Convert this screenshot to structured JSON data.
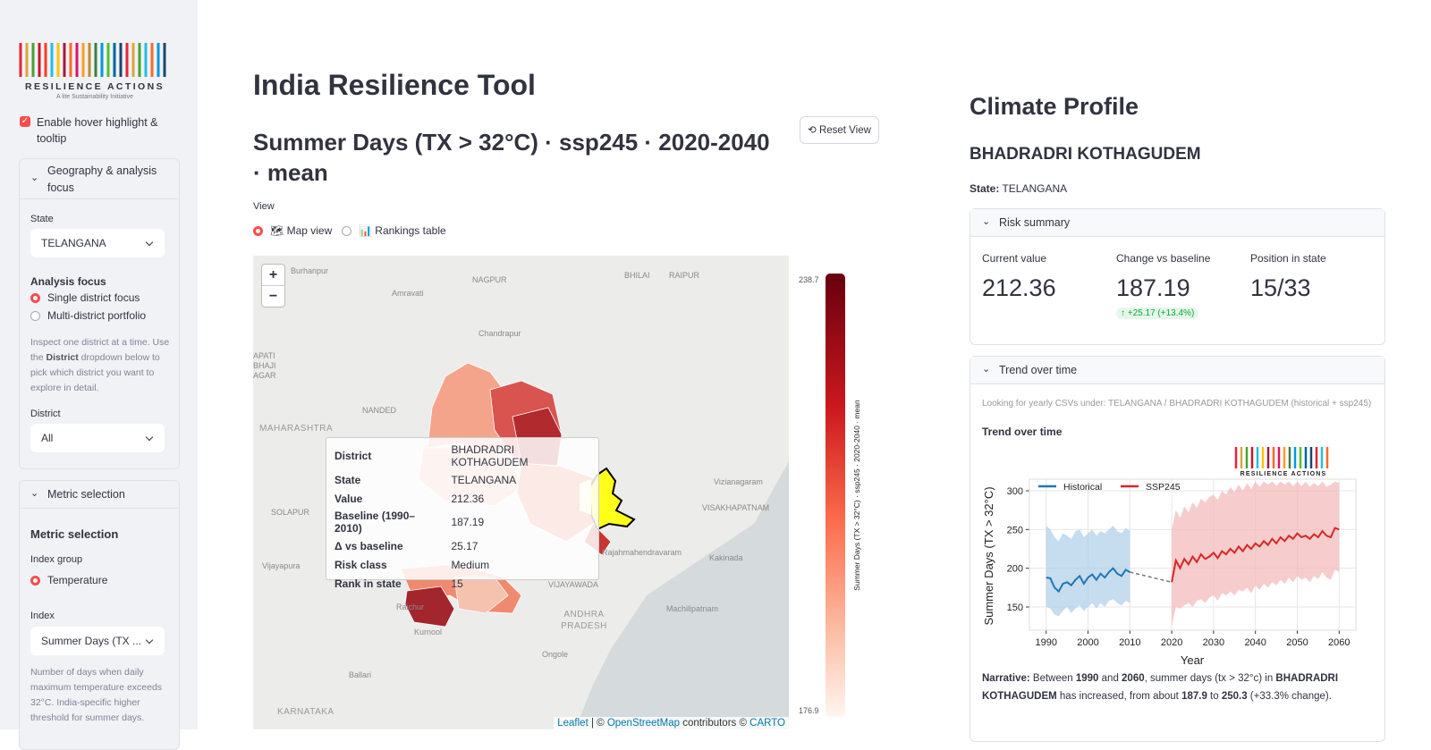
{
  "sidebar": {
    "logo": {
      "name": "RESILIENCE ACTIONS",
      "tagline": "A lite Sustainability Initiative"
    },
    "hover_toggle": "Enable hover highlight & tooltip",
    "geography": {
      "header": "Geography & analysis focus",
      "state_label": "State",
      "state_value": "TELANGANA",
      "focus_label": "Analysis focus",
      "focus_options": [
        "Single district focus",
        "Multi-district portfolio"
      ],
      "focus_help": [
        "Inspect one district at a time. Use the ",
        "District",
        " dropdown below to pick which district you want to explore in detail."
      ],
      "district_label": "District",
      "district_value": "All"
    },
    "metric": {
      "header": "Metric selection",
      "title": "Metric selection",
      "group_label": "Index group",
      "group_option": "Temperature",
      "index_label": "Index",
      "index_value": "Summer Days (TX ...",
      "index_help": "Number of days when daily maximum temperature exceeds 32°C. India-specific higher threshold for summer days."
    }
  },
  "main": {
    "title": "India Resilience Tool",
    "map_title": "Summer Days (TX > 32°C) · ssp245 · 2020-2040 · mean",
    "reset": "Reset View",
    "view_label": "View",
    "view_options": [
      "🗺 Map view",
      "📊 Rankings table"
    ],
    "map": {
      "zoom": [
        "+",
        "−"
      ],
      "places": [
        "Burhanpur",
        "NAGPUR",
        "BHILAI",
        "RAIPUR",
        "Amravati",
        "Chandrapur",
        "APATI",
        "BHAJI",
        "AGAR",
        "NANDED",
        "MAHARASHTRA",
        "SOLAPUR",
        "Vizianagaram",
        "VISAKHAPATNAM",
        "Rajahmahendravaram",
        "Kakinada",
        "Vijayapura",
        "VIJAYAWADA",
        "ANDHRA PRADESH",
        "Machilipatnam",
        "Raichur",
        "Kurnool",
        "Ongole",
        "Ballari",
        "KARNATAKA"
      ],
      "tooltip": [
        [
          "District",
          "BHADRADRI KOTHAGUDEM"
        ],
        [
          "State",
          "TELANGANA"
        ],
        [
          "Value",
          "212.36"
        ],
        [
          "Baseline (1990–2010)",
          "187.19"
        ],
        [
          "Δ vs baseline",
          "25.17"
        ],
        [
          "Risk class",
          "Medium"
        ],
        [
          "Rank in state",
          "15"
        ]
      ],
      "colorbar": {
        "max": "238.7",
        "min": "176.9",
        "label": "Summer Days (TX > 32°C) · ssp245 · 2020-2040 · mean"
      },
      "attribution": [
        "Leaflet",
        " | © ",
        "OpenStreetMap",
        " contributors © ",
        "CARTO"
      ]
    }
  },
  "profile": {
    "title": "Climate Profile",
    "district": "BHADRADRI KOTHAGUDEM",
    "state_label": "State:",
    "state_value": "TELANGANA",
    "risk": {
      "header": "Risk summary",
      "metrics": [
        {
          "label": "Current value",
          "value": "212.36"
        },
        {
          "label": "Change vs baseline",
          "value": "187.19",
          "delta": "↑ +25.17 (+13.4%)"
        },
        {
          "label": "Position in state",
          "value": "15/33"
        }
      ]
    },
    "trend": {
      "header": "Trend over time",
      "info": "Looking for yearly CSVs under: TELANGANA / BHADRADRI KOTHAGUDEM (historical + ssp245)",
      "subtitle": "Trend over time",
      "chart": {
        "type": "line",
        "xlabel": "Year",
        "ylabel": "Summer Days (TX > 32°C)",
        "grid": true,
        "xlim": [
          1986,
          2064
        ],
        "xticks": [
          1990,
          2000,
          2010,
          2020,
          2030,
          2040,
          2050,
          2060
        ],
        "ylim": [
          120,
          315
        ],
        "yticks": [
          150,
          200,
          250,
          300
        ],
        "x": [
          1990,
          1991,
          1992,
          1993,
          1994,
          1995,
          1996,
          1997,
          1998,
          1999,
          2000,
          2001,
          2002,
          2003,
          2004,
          2005,
          2006,
          2007,
          2008,
          2009,
          2010,
          2011,
          2012,
          2013,
          2014,
          2015,
          2016,
          2017,
          2018,
          2019,
          2020,
          2021,
          2022,
          2023,
          2024,
          2025,
          2026,
          2027,
          2028,
          2029,
          2030,
          2031,
          2032,
          2033,
          2034,
          2035,
          2036,
          2037,
          2038,
          2039,
          2040,
          2041,
          2042,
          2043,
          2044,
          2045,
          2046,
          2047,
          2048,
          2049,
          2050,
          2051,
          2052,
          2053,
          2054,
          2055,
          2056,
          2057,
          2058,
          2059,
          2060
        ],
        "series": [
          {
            "name": "Historical",
            "color": "#1f77b4",
            "band_color": "#aecde8",
            "values": [
              188,
              187,
              175,
              170,
              180,
              182,
              178,
              185,
              190,
              180,
              188,
              192,
              185,
              193,
              188,
              195,
              200,
              193,
              190,
              198,
              195,
              null,
              null,
              null,
              null,
              null,
              null,
              null,
              null,
              null,
              null,
              null,
              null,
              null,
              null,
              null,
              null,
              null,
              null,
              null,
              null,
              null,
              null,
              null,
              null,
              null,
              null,
              null,
              null,
              null,
              null,
              null,
              null,
              null,
              null,
              null,
              null,
              null,
              null,
              null,
              null,
              null,
              null,
              null,
              null,
              null,
              null,
              null,
              null,
              null,
              null
            ],
            "lower": [
              150,
              148,
              140,
              138,
              145,
              150,
              142,
              148,
              152,
              145,
              150,
              155,
              148,
              155,
              150,
              158,
              160,
              155,
              152,
              158,
              155,
              null,
              null,
              null,
              null,
              null,
              null,
              null,
              null,
              null,
              null,
              null,
              null,
              null,
              null,
              null,
              null,
              null,
              null,
              null,
              null,
              null,
              null,
              null,
              null,
              null,
              null,
              null,
              null,
              null,
              null,
              null,
              null,
              null,
              null,
              null,
              null,
              null,
              null,
              null,
              null,
              null,
              null,
              null,
              null,
              null,
              null,
              null,
              null,
              null,
              null
            ],
            "upper": [
              255,
              250,
              240,
              235,
              245,
              242,
              238,
              248,
              250,
              240,
              245,
              250,
              242,
              248,
              245,
              250,
              255,
              248,
              245,
              252,
              248,
              null,
              null,
              null,
              null,
              null,
              null,
              null,
              null,
              null,
              null,
              null,
              null,
              null,
              null,
              null,
              null,
              null,
              null,
              null,
              null,
              null,
              null,
              null,
              null,
              null,
              null,
              null,
              null,
              null,
              null,
              null,
              null,
              null,
              null,
              null,
              null,
              null,
              null,
              null,
              null,
              null,
              null,
              null,
              null,
              null,
              null,
              null,
              null,
              null,
              null
            ]
          },
          {
            "name": "SSP245",
            "color": "#d62728",
            "band_color": "#f4b6b8",
            "values": [
              null,
              null,
              null,
              null,
              null,
              null,
              null,
              null,
              null,
              null,
              null,
              null,
              null,
              null,
              null,
              null,
              null,
              null,
              null,
              null,
              null,
              null,
              null,
              null,
              null,
              null,
              null,
              null,
              null,
              null,
              182,
              210,
              200,
              212,
              205,
              215,
              208,
              218,
              212,
              215,
              220,
              213,
              222,
              218,
              225,
              220,
              228,
              222,
              230,
              225,
              232,
              228,
              235,
              230,
              238,
              232,
              240,
              235,
              242,
              238,
              245,
              240,
              242,
              238,
              244,
              240,
              248,
              242,
              240,
              252,
              250
            ],
            "lower": [
              null,
              null,
              null,
              null,
              null,
              null,
              null,
              null,
              null,
              null,
              null,
              null,
              null,
              null,
              null,
              null,
              null,
              null,
              null,
              null,
              null,
              null,
              null,
              null,
              null,
              null,
              null,
              null,
              null,
              null,
              125,
              150,
              148,
              152,
              155,
              150,
              158,
              160,
              155,
              162,
              165,
              158,
              168,
              165,
              170,
              165,
              172,
              170,
              175,
              168,
              178,
              172,
              180,
              175,
              182,
              178,
              185,
              180,
              188,
              182,
              190,
              185,
              188,
              182,
              190,
              186,
              195,
              188,
              185,
              198,
              195
            ],
            "upper": [
              null,
              null,
              null,
              null,
              null,
              null,
              null,
              null,
              null,
              null,
              null,
              null,
              null,
              null,
              null,
              null,
              null,
              null,
              null,
              null,
              null,
              null,
              null,
              null,
              null,
              null,
              null,
              null,
              null,
              null,
              250,
              275,
              265,
              280,
              272,
              285,
              278,
              290,
              285,
              292,
              295,
              288,
              300,
              295,
              305,
              298,
              308,
              300,
              310,
              302,
              312,
              305,
              312,
              308,
              312,
              306,
              312,
              308,
              312,
              306,
              312,
              306,
              312,
              305,
              310,
              306,
              312,
              305,
              308,
              312,
              310
            ]
          }
        ]
      },
      "narrative": [
        "Narrative:",
        " Between ",
        "1990",
        " and ",
        "2060",
        ", summer days (tx > 32°c) in ",
        "BHADRADRI KOTHAGUDEM",
        " has increased, from about ",
        "187.9",
        " to ",
        "250.3",
        " (+33.3% change)."
      ]
    }
  }
}
